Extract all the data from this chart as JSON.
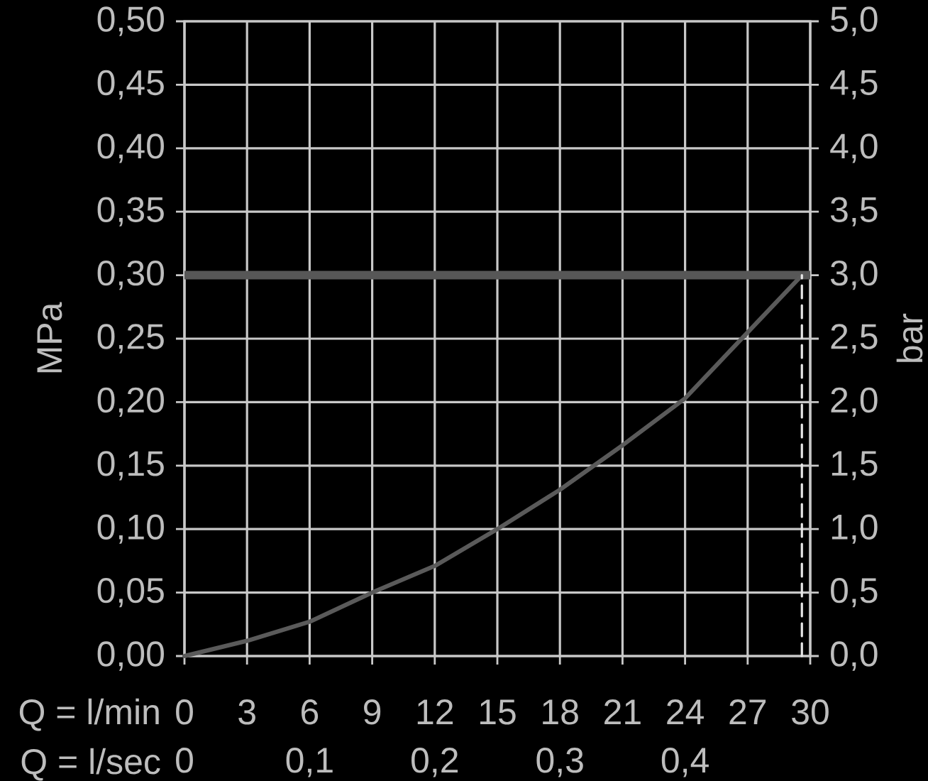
{
  "chart_data": {
    "type": "line",
    "xlabel": "Q = l/min",
    "ylabel": "MPa",
    "y2label": "bar",
    "x2label": "Q = l/sec",
    "xlim": [
      0,
      30
    ],
    "xticks": [
      0,
      3,
      6,
      9,
      12,
      15,
      18,
      21,
      24,
      27,
      30
    ],
    "ylim": [
      0,
      0.5
    ],
    "yticks": [
      {
        "value": 0,
        "label": "0,00"
      },
      {
        "value": 0.05,
        "label": "0,05"
      },
      {
        "value": 0.1,
        "label": "0,10"
      },
      {
        "value": 0.15,
        "label": "0,15"
      },
      {
        "value": 0.2,
        "label": "0,20"
      },
      {
        "value": 0.25,
        "label": "0,25"
      },
      {
        "value": 0.3,
        "label": "0,30"
      },
      {
        "value": 0.35,
        "label": "0,35"
      },
      {
        "value": 0.4,
        "label": "0,40"
      },
      {
        "value": 0.45,
        "label": "0,45"
      },
      {
        "value": 0.5,
        "label": "0,50"
      }
    ],
    "y2lim": [
      0,
      5
    ],
    "y2ticks": [
      {
        "value": 0,
        "label": "0,0"
      },
      {
        "value": 0.5,
        "label": "0,5"
      },
      {
        "value": 1,
        "label": "1,0"
      },
      {
        "value": 1.5,
        "label": "1,5"
      },
      {
        "value": 2,
        "label": "2,0"
      },
      {
        "value": 2.5,
        "label": "2,5"
      },
      {
        "value": 3,
        "label": "3,0"
      },
      {
        "value": 3.5,
        "label": "3,5"
      },
      {
        "value": 4,
        "label": "4,0"
      },
      {
        "value": 4.5,
        "label": "4,5"
      },
      {
        "value": 5,
        "label": "5,0"
      }
    ],
    "x2lim": [
      0,
      0.5
    ],
    "x2ticks": [
      0,
      {
        "value": 0.1,
        "label": "0,1"
      },
      {
        "value": 0.2,
        "label": "0,2"
      },
      {
        "value": 0.3,
        "label": "0,3"
      },
      {
        "value": 0.4,
        "label": "0,4"
      }
    ],
    "grid": true,
    "marker": "none",
    "ref_lines": [
      {
        "axis": "y",
        "value": 0.3,
        "color": "#575757"
      }
    ],
    "series": [
      {
        "color": "#5a5a5a",
        "line_style": "solid",
        "x": [
          0,
          3,
          6,
          9,
          12,
          15,
          18,
          21,
          24,
          27,
          29.6
        ],
        "values": [
          0,
          0.012,
          0.027,
          0.05,
          0.071,
          0.1,
          0.131,
          0.166,
          0.203,
          0.255,
          0.3
        ]
      },
      {
        "color": "#e6e6e6",
        "line_style": "dashed",
        "x": [
          29.6,
          29.6
        ],
        "values": [
          0,
          0.3
        ]
      }
    ]
  }
}
